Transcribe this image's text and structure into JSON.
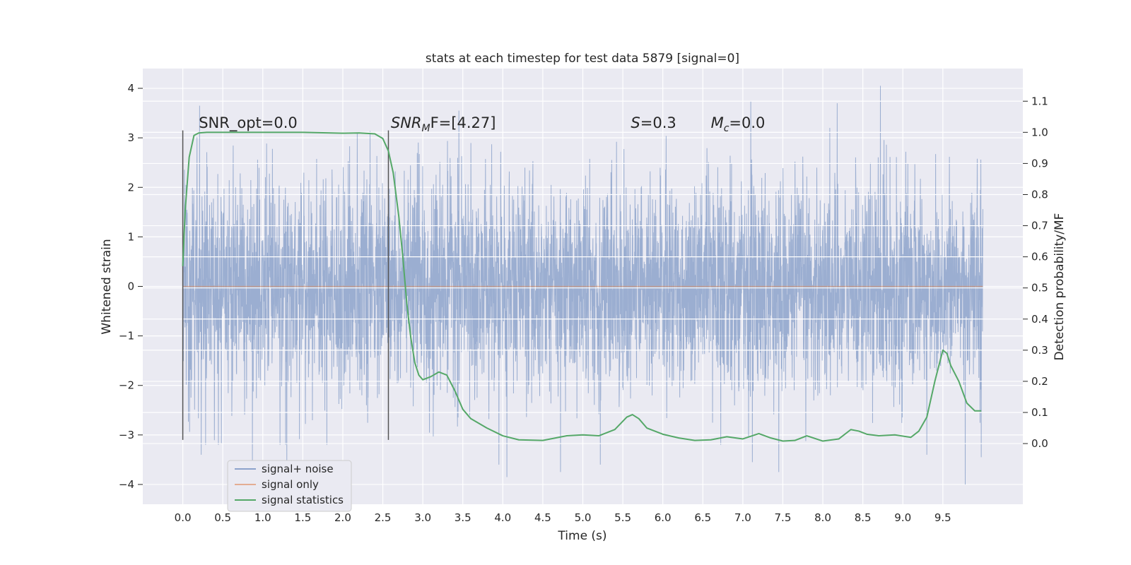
{
  "chart_data": {
    "type": "line",
    "title": "stats at each timestep for test data 5879 [signal=0]",
    "xlabel": "Time (s)",
    "ylabel": "Whitened strain",
    "y2label": "Detection probability/MF",
    "xlim": [
      -0.5,
      10.5
    ],
    "ylim": [
      -4.4,
      4.4
    ],
    "y2lim": [
      -0.195,
      1.205
    ],
    "x_ticks": [
      0.0,
      0.5,
      1.0,
      1.5,
      2.0,
      2.5,
      3.0,
      3.5,
      4.0,
      4.5,
      5.0,
      5.5,
      6.0,
      6.5,
      7.0,
      7.5,
      8.0,
      8.5,
      9.0,
      9.5
    ],
    "x_tick_labels": [
      "0.0",
      "0.5",
      "1.0",
      "1.5",
      "2.0",
      "2.5",
      "3.0",
      "3.5",
      "4.0",
      "4.5",
      "5.0",
      "5.5",
      "6.0",
      "6.5",
      "7.0",
      "7.5",
      "8.0",
      "8.5",
      "9.0",
      "9.5"
    ],
    "y_ticks": [
      4,
      3,
      2,
      1,
      0,
      -1,
      -2,
      -3,
      -4
    ],
    "y_tick_labels": [
      "4",
      "3",
      "2",
      "1",
      "0",
      "−1",
      "−2",
      "−3",
      "−4"
    ],
    "y2_ticks": [
      1.1,
      1.0,
      0.9,
      0.8,
      0.7,
      0.6,
      0.5,
      0.4,
      0.3,
      0.2,
      0.1,
      0.0
    ],
    "y2_tick_labels": [
      "1.1",
      "1.0",
      "0.9",
      "0.8",
      "0.7",
      "0.6",
      "0.5",
      "0.4",
      "0.3",
      "0.2",
      "0.1",
      "0.0"
    ],
    "grid": true,
    "legend_position": "lower-left",
    "legend": [
      "signal+ noise",
      "signal only",
      "signal statistics"
    ],
    "colors": {
      "signal_noise": "#4c72b0",
      "signal_only": "#dd8452",
      "signal_statistics": "#55a868",
      "vline": "#555555",
      "background": "#eaeaf2"
    },
    "noise_series": {
      "name": "signal+ noise",
      "x_start": 0.0,
      "x_end": 10.0,
      "typical_amplitude": 1.3,
      "peaks": [
        {
          "x": 0.21,
          "y": 3.65
        },
        {
          "x": 0.23,
          "y": -3.4
        },
        {
          "x": 0.87,
          "y": -3.55
        },
        {
          "x": 1.3,
          "y": -3.6
        },
        {
          "x": 2.18,
          "y": 3.1
        },
        {
          "x": 3.45,
          "y": 3.55
        },
        {
          "x": 3.95,
          "y": -3.6
        },
        {
          "x": 4.05,
          "y": -3.85
        },
        {
          "x": 4.72,
          "y": -3.75
        },
        {
          "x": 5.22,
          "y": -3.6
        },
        {
          "x": 7.1,
          "y": 3.75
        },
        {
          "x": 7.12,
          "y": -3.55
        },
        {
          "x": 7.45,
          "y": -3.75
        },
        {
          "x": 8.18,
          "y": 3.7
        },
        {
          "x": 8.72,
          "y": 4.05
        },
        {
          "x": 9.3,
          "y": -3.4
        },
        {
          "x": 9.78,
          "y": -4.0
        },
        {
          "x": 9.98,
          "y": -3.45
        }
      ]
    },
    "signal_only_series": {
      "name": "signal only",
      "x": [
        0.0,
        10.0
      ],
      "y": [
        0.0,
        0.0
      ]
    },
    "stats_series": {
      "name": "signal statistics",
      "x": [
        0.0,
        0.03,
        0.08,
        0.14,
        0.2,
        0.3,
        0.5,
        1.0,
        1.5,
        2.0,
        2.2,
        2.4,
        2.5,
        2.57,
        2.63,
        2.7,
        2.75,
        2.8,
        2.85,
        2.9,
        2.95,
        3.0,
        3.1,
        3.2,
        3.3,
        3.4,
        3.5,
        3.6,
        3.8,
        4.0,
        4.2,
        4.5,
        4.8,
        5.0,
        5.2,
        5.4,
        5.55,
        5.62,
        5.7,
        5.8,
        6.0,
        6.2,
        6.4,
        6.6,
        6.8,
        7.0,
        7.2,
        7.35,
        7.5,
        7.65,
        7.8,
        8.0,
        8.2,
        8.35,
        8.45,
        8.55,
        8.7,
        8.9,
        9.1,
        9.2,
        9.3,
        9.4,
        9.5,
        9.55,
        9.6,
        9.7,
        9.8,
        9.9,
        9.98
      ],
      "y": [
        0.57,
        0.75,
        0.92,
        0.99,
        0.998,
        1.0,
        1.0,
        1.0,
        1.0,
        0.997,
        0.998,
        0.995,
        0.98,
        0.94,
        0.87,
        0.73,
        0.6,
        0.45,
        0.34,
        0.26,
        0.22,
        0.205,
        0.215,
        0.23,
        0.22,
        0.17,
        0.11,
        0.08,
        0.05,
        0.025,
        0.012,
        0.01,
        0.025,
        0.028,
        0.025,
        0.045,
        0.085,
        0.093,
        0.08,
        0.05,
        0.03,
        0.018,
        0.01,
        0.012,
        0.022,
        0.015,
        0.032,
        0.018,
        0.008,
        0.01,
        0.025,
        0.008,
        0.015,
        0.045,
        0.04,
        0.03,
        0.025,
        0.028,
        0.02,
        0.04,
        0.085,
        0.2,
        0.3,
        0.29,
        0.25,
        0.2,
        0.13,
        0.105,
        0.105
      ]
    },
    "vlines": [
      {
        "x": 0.0,
        "ymin": -3.1,
        "ymax": 3.15
      },
      {
        "x": 2.57,
        "ymin": -3.1,
        "ymax": 3.15
      }
    ],
    "annotations": [
      {
        "id": "snr-opt",
        "x": 0.2,
        "y": 3.2,
        "prefix": "SNR_opt=0.0",
        "sub": "",
        "suffix": ""
      },
      {
        "id": "snr-mf",
        "x": 2.6,
        "y": 3.2,
        "prefix": "SNR",
        "sub": "M",
        "suffix": "F=[4.27]"
      },
      {
        "id": "s-value",
        "x": 5.6,
        "y": 3.2,
        "prefix": "S",
        "sub": "",
        "suffix": "=0.3"
      },
      {
        "id": "mc-value",
        "x": 6.6,
        "y": 3.2,
        "prefix": "M",
        "sub": "c",
        "suffix": "=0.0"
      }
    ]
  }
}
